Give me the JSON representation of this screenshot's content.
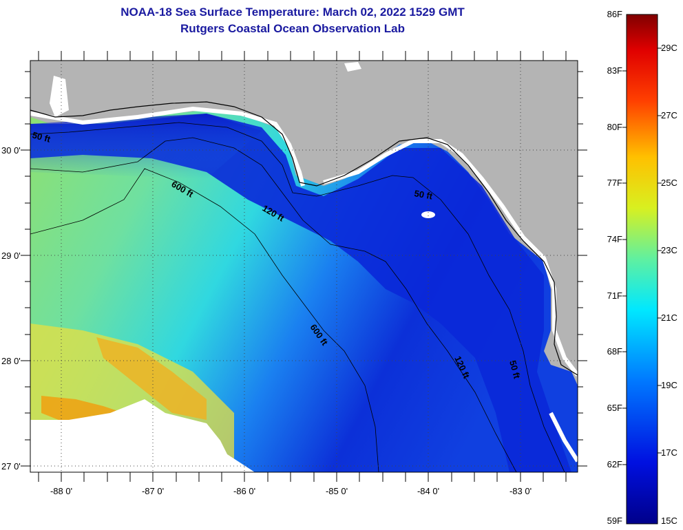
{
  "title": {
    "line1": "NOAA-18 Sea Surface Temperature:  March 02, 2022 1529 GMT",
    "line2": "Rutgers Coastal Ocean Observation Lab"
  },
  "map": {
    "lat_labels": [
      "30 0'",
      "29 0'",
      "28 0'",
      "27 0'"
    ],
    "lon_labels": [
      "-88 0'",
      "-87 0'",
      "-86 0'",
      "-85 0'",
      "-84 0'",
      "-83 0'"
    ],
    "contour_labels": {
      "c50_west": "50 ft",
      "c600_a": "600 ft",
      "c120_a": "120 ft",
      "c50_east": "50 ft",
      "c600_b": "600 ft",
      "c120_b": "120 ft",
      "c50_b": "50 ft"
    },
    "colors": {
      "land": "#b4b4b4",
      "cloud": "#ffffff",
      "coastline": "#000000"
    }
  },
  "colorbar": {
    "f_labels": [
      "86F",
      "83F",
      "80F",
      "77F",
      "74F",
      "71F",
      "68F",
      "65F",
      "62F",
      "59F"
    ],
    "c_labels": [
      "29C",
      "27C",
      "25C",
      "23C",
      "21C",
      "19C",
      "17C",
      "15C"
    ]
  }
}
